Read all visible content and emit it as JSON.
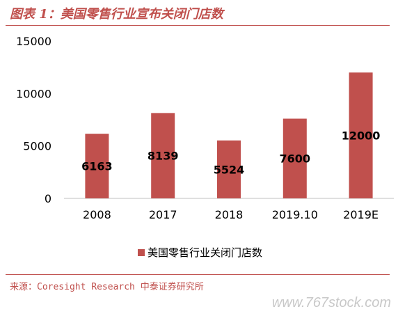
{
  "figure": {
    "title": "图表 1：美国零售行业宣布关闭门店数",
    "source": "来源：Coresight Research 中泰证券研究所",
    "watermark": "www.767stock.com"
  },
  "colors": {
    "bar": "#c0504d",
    "accent": "#c0504d",
    "axis": "#bfbfbf",
    "text": "#000000"
  },
  "chart_data": {
    "type": "bar",
    "categories": [
      "2008",
      "2017",
      "2018",
      "2019.10",
      "2019E"
    ],
    "series": [
      {
        "name": "美国零售行业关闭门店数",
        "values": [
          6163,
          8139,
          5524,
          7600,
          12000
        ]
      }
    ],
    "data_labels": [
      "6163",
      "8139",
      "5524",
      "7600",
      "12000"
    ],
    "yticks": [
      "0",
      "5000",
      "10000",
      "15000"
    ],
    "ylim": [
      0,
      15000
    ],
    "xlabel": "",
    "ylabel": "",
    "grid": false,
    "legend": "bottom"
  }
}
